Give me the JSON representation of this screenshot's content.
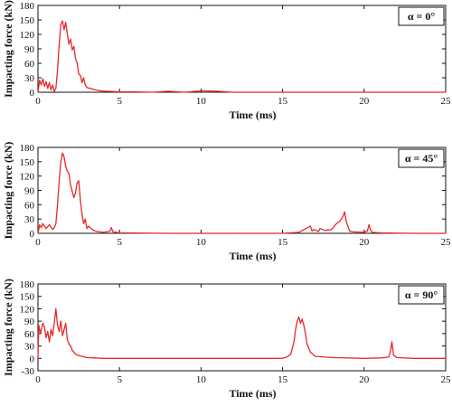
{
  "colors": {
    "series": "#e8282b",
    "axis": "#111111",
    "background": "#ffffff"
  },
  "chart_data": [
    {
      "type": "line",
      "label": "α = 0°",
      "xlabel": "Time (ms)",
      "ylabel": "Impacting force (kN)",
      "xlim": [
        0,
        25
      ],
      "ylim": [
        0,
        180
      ],
      "xticks": [
        "0",
        "5",
        "10",
        "15",
        "20",
        "25"
      ],
      "yticks": [
        "0",
        "30",
        "60",
        "90",
        "120",
        "150",
        "180"
      ],
      "grid": false,
      "legend_position": "top-right",
      "series": [
        {
          "x": [
            0,
            0.1,
            0.2,
            0.3,
            0.4,
            0.5,
            0.6,
            0.7,
            0.8,
            0.9,
            1.0,
            1.1,
            1.2,
            1.3,
            1.4,
            1.5,
            1.6,
            1.7,
            1.8,
            1.9,
            2.0,
            2.1,
            2.2,
            2.3,
            2.4,
            2.5,
            2.6,
            2.7,
            2.8,
            2.9,
            3.0,
            3.2,
            3.5,
            3.8,
            4.2,
            5.0,
            6.0,
            7.0,
            8.0,
            9.0,
            10.0,
            11.0,
            12.0,
            15.0,
            20.0,
            25.0
          ],
          "y": [
            0,
            25,
            15,
            28,
            12,
            22,
            8,
            20,
            5,
            15,
            2,
            8,
            45,
            100,
            140,
            148,
            130,
            145,
            120,
            100,
            110,
            88,
            95,
            70,
            60,
            38,
            35,
            20,
            30,
            15,
            10,
            8,
            5,
            3,
            2,
            1,
            1,
            0,
            2,
            0,
            3,
            2,
            0,
            0,
            0,
            0
          ]
        }
      ]
    },
    {
      "type": "line",
      "label": "α = 45°",
      "xlabel": "Time (ms)",
      "ylabel": "Impacting force (kN)",
      "xlim": [
        0,
        25
      ],
      "ylim": [
        0,
        180
      ],
      "xticks": [
        "0",
        "5",
        "10",
        "15",
        "20",
        "25"
      ],
      "yticks": [
        "0",
        "30",
        "60",
        "90",
        "120",
        "150",
        "180"
      ],
      "grid": false,
      "legend_position": "top-right",
      "series": [
        {
          "x": [
            0,
            0.1,
            0.2,
            0.3,
            0.5,
            0.7,
            0.9,
            1.0,
            1.1,
            1.2,
            1.3,
            1.4,
            1.5,
            1.6,
            1.7,
            1.8,
            1.9,
            2.0,
            2.1,
            2.2,
            2.3,
            2.4,
            2.5,
            2.6,
            2.7,
            2.8,
            2.9,
            3.0,
            3.1,
            3.2,
            3.4,
            3.6,
            3.8,
            4.0,
            4.4,
            4.5,
            4.6,
            5.0,
            8.0,
            12.0,
            15.0,
            16.0,
            16.7,
            16.8,
            16.9,
            17.2,
            17.3,
            17.6,
            18.0,
            18.3,
            18.5,
            18.7,
            18.8,
            18.9,
            19.1,
            19.3,
            20.0,
            20.2,
            20.3,
            20.4,
            20.5,
            21.0,
            23.0,
            25.0
          ],
          "y": [
            0,
            18,
            12,
            20,
            10,
            18,
            8,
            12,
            20,
            60,
            110,
            150,
            168,
            160,
            140,
            130,
            125,
            100,
            88,
            75,
            85,
            105,
            110,
            70,
            40,
            20,
            30,
            10,
            15,
            12,
            6,
            4,
            3,
            2,
            4,
            12,
            3,
            1,
            0,
            0,
            0,
            2,
            15,
            5,
            8,
            4,
            10,
            6,
            8,
            20,
            25,
            35,
            45,
            25,
            5,
            3,
            2,
            5,
            18,
            6,
            2,
            1,
            0,
            0
          ]
        }
      ]
    },
    {
      "type": "line",
      "label": "α = 90°",
      "xlabel": "Time (ms)",
      "ylabel": "Impacting force (kN)",
      "xlim": [
        0,
        25
      ],
      "ylim": [
        -30,
        180
      ],
      "xticks": [
        "0",
        "5",
        "10",
        "15",
        "20",
        "25"
      ],
      "yticks": [
        "-30",
        "0",
        "30",
        "60",
        "90",
        "120",
        "150",
        "180"
      ],
      "grid": false,
      "legend_position": "top-right",
      "series": [
        {
          "x": [
            0,
            0.05,
            0.15,
            0.3,
            0.4,
            0.5,
            0.6,
            0.7,
            0.8,
            0.9,
            1.0,
            1.1,
            1.2,
            1.3,
            1.4,
            1.5,
            1.6,
            1.7,
            1.8,
            1.9,
            2.0,
            2.1,
            2.2,
            2.3,
            2.5,
            2.8,
            3.0,
            3.5,
            4.0,
            6.0,
            10.0,
            14.0,
            15.0,
            15.3,
            15.5,
            15.7,
            15.8,
            15.9,
            16.0,
            16.1,
            16.2,
            16.3,
            16.4,
            16.5,
            16.7,
            17.0,
            18.0,
            20.0,
            21.0,
            21.5,
            21.6,
            21.7,
            21.8,
            22.0,
            23.0,
            25.0
          ],
          "y": [
            0,
            80,
            60,
            85,
            75,
            50,
            65,
            40,
            70,
            55,
            85,
            120,
            80,
            65,
            90,
            55,
            70,
            85,
            45,
            35,
            30,
            20,
            15,
            10,
            7,
            4,
            2,
            1,
            0,
            0,
            0,
            0,
            0,
            4,
            10,
            40,
            70,
            90,
            100,
            85,
            95,
            80,
            60,
            35,
            15,
            5,
            2,
            0,
            1,
            3,
            15,
            40,
            8,
            2,
            0,
            0
          ]
        }
      ]
    }
  ]
}
